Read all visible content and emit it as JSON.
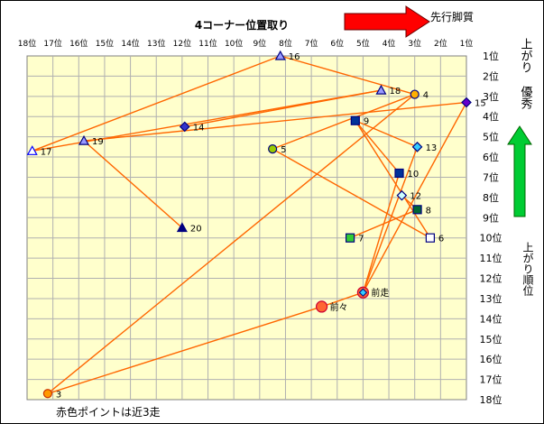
{
  "chart_data": {
    "type": "scatter",
    "title": "4コーナー位置取り",
    "x_axis": {
      "ticks": [
        "18位",
        "17位",
        "16位",
        "15位",
        "14位",
        "13位",
        "12位",
        "11位",
        "10位",
        "9位",
        "8位",
        "7位",
        "6位",
        "5位",
        "4位",
        "3位",
        "2位",
        "1位"
      ],
      "range": [
        18,
        1
      ]
    },
    "y_axis": {
      "ticks": [
        "1位",
        "2位",
        "3位",
        "4位",
        "5位",
        "6位",
        "7位",
        "8位",
        "9位",
        "10位",
        "11位",
        "12位",
        "13位",
        "14位",
        "15位",
        "16位",
        "17位",
        "18位"
      ],
      "range": [
        1,
        18
      ]
    },
    "grid": true,
    "annotations": {
      "arrow_right_label": "先行脚質",
      "arrow_up_label_1": "上がり",
      "arrow_up_label_2": "優秀",
      "right_label": "上がり順位",
      "footnote": "赤色ポイントは近3走"
    },
    "points": [
      {
        "label": "16",
        "x": 8.2,
        "y": 1.0,
        "shape": "triangle",
        "fill": "#9999ff",
        "stroke": "#000080"
      },
      {
        "label": "18",
        "x": 4.3,
        "y": 2.7,
        "shape": "triangle",
        "fill": "#9999ff",
        "stroke": "#000080"
      },
      {
        "label": "4",
        "x": 3.0,
        "y": 2.9,
        "shape": "circle",
        "fill": "#ffb000",
        "stroke": "#000080"
      },
      {
        "label": "15",
        "x": 1.0,
        "y": 3.3,
        "shape": "diamond",
        "fill": "#6600cc",
        "stroke": "#000080"
      },
      {
        "label": "9",
        "x": 5.3,
        "y": 4.2,
        "shape": "square",
        "fill": "#003399",
        "stroke": "#000080"
      },
      {
        "label": "14",
        "x": 11.9,
        "y": 4.5,
        "shape": "diamond",
        "fill": "#3333cc",
        "stroke": "#000080"
      },
      {
        "label": "19",
        "x": 15.8,
        "y": 5.2,
        "shape": "triangle",
        "fill": "#9999ff",
        "stroke": "#000080"
      },
      {
        "label": "13",
        "x": 2.9,
        "y": 5.5,
        "shape": "diamond",
        "fill": "#33ccff",
        "stroke": "#000080"
      },
      {
        "label": "17",
        "x": 17.8,
        "y": 5.7,
        "shape": "triangle",
        "fill": "#ffffff",
        "stroke": "#0000ff"
      },
      {
        "label": "5",
        "x": 8.5,
        "y": 5.6,
        "shape": "circle",
        "fill": "#99cc00",
        "stroke": "#000080"
      },
      {
        "label": "10",
        "x": 3.6,
        "y": 6.8,
        "shape": "square",
        "fill": "#003399",
        "stroke": "#000080"
      },
      {
        "label": "12",
        "x": 3.5,
        "y": 7.9,
        "shape": "diamond",
        "fill": "#ccffff",
        "stroke": "#000080"
      },
      {
        "label": "8",
        "x": 2.9,
        "y": 8.6,
        "shape": "square",
        "fill": "#006633",
        "stroke": "#000080"
      },
      {
        "label": "20",
        "x": 12.0,
        "y": 9.5,
        "shape": "triangle",
        "fill": "#000080",
        "stroke": "#000080"
      },
      {
        "label": "7",
        "x": 5.5,
        "y": 10.0,
        "shape": "square",
        "fill": "#33cc33",
        "stroke": "#000080"
      },
      {
        "label": "6",
        "x": 2.4,
        "y": 10.0,
        "shape": "square",
        "fill": "#ffffff",
        "stroke": "#000080"
      },
      {
        "label": "前走",
        "x": 5.0,
        "y": 12.7,
        "shape": "circle",
        "fill": "#ff6633",
        "stroke": "#cc0033"
      },
      {
        "label": "前々",
        "x": 6.6,
        "y": 13.4,
        "shape": "circle",
        "fill": "#ff6633",
        "stroke": "#cc0033"
      },
      {
        "label": "3",
        "x": 17.2,
        "y": 17.7,
        "shape": "circle",
        "fill": "#ff9900",
        "stroke": "#cc3300"
      }
    ],
    "connections": [
      [
        "17",
        "16"
      ],
      [
        "16",
        "4"
      ],
      [
        "17",
        "18"
      ],
      [
        "19",
        "15"
      ],
      [
        "19",
        "20"
      ],
      [
        "14",
        "18"
      ],
      [
        "5",
        "4"
      ],
      [
        "9",
        "10"
      ],
      [
        "9",
        "13"
      ],
      [
        "9",
        "6"
      ],
      [
        "12",
        "8"
      ],
      [
        "8",
        "7"
      ],
      [
        "13",
        "前走"
      ],
      [
        "10",
        "前走"
      ],
      [
        "5",
        "6"
      ],
      [
        "前々",
        "前走"
      ],
      [
        "前々",
        "3"
      ],
      [
        "3",
        "4"
      ],
      [
        "前走",
        "15"
      ]
    ],
    "line_color": "#ff6600",
    "plot_bg": "#ffffcc",
    "arrow_right_color": "#ff0000",
    "arrow_up_color": "#00cc33"
  }
}
